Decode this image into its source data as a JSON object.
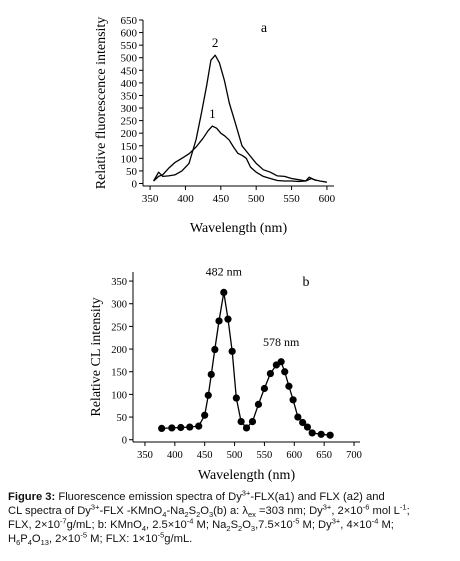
{
  "chart_data": [
    {
      "type": "line",
      "panel_label": "a",
      "xlabel": "Wavelength (nm)",
      "ylabel": "Relative fluorescence intensity",
      "xlim": [
        340,
        610
      ],
      "ylim": [
        -10,
        650
      ],
      "xticks": [
        350,
        400,
        450,
        500,
        550,
        600
      ],
      "yticks": [
        0,
        50,
        100,
        150,
        200,
        250,
        300,
        350,
        400,
        450,
        500,
        550,
        600,
        650
      ],
      "xtick_labels": [
        "350",
        "400",
        "450",
        "500",
        "550",
        "600"
      ],
      "ytick_labels": [
        "0",
        "50",
        "100",
        "150",
        "200",
        "250",
        "300",
        "350",
        "400",
        "450",
        "500",
        "550",
        "600",
        "650"
      ],
      "series": [
        {
          "name": "1",
          "x": [
            355,
            362,
            368,
            376,
            385,
            395,
            405,
            415,
            425,
            432,
            438,
            444,
            450,
            456,
            462,
            468,
            474,
            480,
            486,
            492,
            500,
            510,
            520,
            530,
            540,
            550,
            560,
            570,
            578,
            585
          ],
          "y": [
            10,
            28,
            35,
            60,
            83,
            100,
            118,
            145,
            180,
            210,
            228,
            220,
            200,
            188,
            172,
            145,
            120,
            112,
            100,
            65,
            45,
            28,
            20,
            12,
            10,
            10,
            8,
            10,
            20,
            12
          ]
        },
        {
          "name": "2",
          "x": [
            355,
            362,
            368,
            376,
            385,
            395,
            405,
            415,
            423,
            430,
            436,
            442,
            448,
            455,
            462,
            470,
            480,
            490,
            500,
            510,
            520,
            530,
            540,
            550,
            560,
            570,
            575,
            582,
            590,
            600
          ],
          "y": [
            10,
            45,
            28,
            30,
            34,
            50,
            80,
            175,
            285,
            390,
            490,
            510,
            480,
            410,
            320,
            245,
            150,
            115,
            80,
            55,
            45,
            30,
            28,
            20,
            15,
            10,
            25,
            15,
            10,
            5
          ]
        }
      ]
    },
    {
      "type": "line",
      "panel_label": "b",
      "xlabel": "Wavelength (nm)",
      "ylabel": "Relative CL intensity",
      "xlim": [
        330,
        710
      ],
      "ylim": [
        -5,
        370
      ],
      "xticks": [
        350,
        400,
        450,
        500,
        550,
        600,
        650,
        700
      ],
      "yticks": [
        0,
        50,
        100,
        150,
        200,
        250,
        300,
        350
      ],
      "xtick_labels": [
        "350",
        "400",
        "450",
        "500",
        "550",
        "600",
        "650",
        "700"
      ],
      "ytick_labels": [
        "0",
        "50",
        "100",
        "150",
        "200",
        "250",
        "300",
        "350"
      ],
      "annotations": [
        "482 nm",
        "578 nm"
      ],
      "series": [
        {
          "name": "",
          "x": [
            378,
            395,
            410,
            425,
            440,
            450,
            456,
            461,
            467,
            474,
            482,
            489,
            496,
            503,
            511,
            520,
            530,
            540,
            550,
            560,
            570,
            578,
            584,
            591,
            598,
            606,
            614,
            622,
            630,
            645,
            660
          ],
          "y": [
            25,
            26,
            27,
            28,
            30,
            54,
            98,
            144,
            199,
            262,
            325,
            266,
            195,
            92,
            40,
            26,
            40,
            78,
            113,
            146,
            165,
            172,
            150,
            118,
            88,
            50,
            38,
            28,
            15,
            12,
            10
          ]
        }
      ]
    }
  ],
  "caption": {
    "lines": [
      {
        "parts": [
          {
            "text": "Figure 3:",
            "style": "b"
          },
          {
            "text": " Fluorescence emission spectra of Dy"
          },
          {
            "text": "3+",
            "style": "sup"
          },
          {
            "text": "-FLX(a1) and FLX (a2) and"
          }
        ]
      },
      {
        "parts": [
          {
            "text": "CL spectra of Dy"
          },
          {
            "text": "3+",
            "style": "sup"
          },
          {
            "text": "-FLX -KMnO"
          },
          {
            "text": "4",
            "style": "sub"
          },
          {
            "text": "-Na"
          },
          {
            "text": "2",
            "style": "sub"
          },
          {
            "text": "S"
          },
          {
            "text": "2",
            "style": "sub"
          },
          {
            "text": "O"
          },
          {
            "text": "3",
            "style": "sub"
          },
          {
            "text": "(b) a: λ"
          },
          {
            "text": "ex",
            "style": "sub"
          },
          {
            "text": " =303 nm; Dy"
          },
          {
            "text": "3+",
            "style": "sup"
          },
          {
            "text": ", 2×10"
          },
          {
            "text": "-6",
            "style": "sup"
          },
          {
            "text": " mol L"
          },
          {
            "text": "-1",
            "style": "sup"
          },
          {
            "text": ";"
          }
        ]
      },
      {
        "parts": [
          {
            "text": "FLX, 2×10"
          },
          {
            "text": "-7",
            "style": "sup"
          },
          {
            "text": "g/mL; b: KMnO"
          },
          {
            "text": "4",
            "style": "sub"
          },
          {
            "text": ", 2.5×10"
          },
          {
            "text": "-4",
            "style": "sup"
          },
          {
            "text": " M; Na"
          },
          {
            "text": "2",
            "style": "sub"
          },
          {
            "text": "S"
          },
          {
            "text": "2",
            "style": "sub"
          },
          {
            "text": "O"
          },
          {
            "text": "3",
            "style": "sub"
          },
          {
            "text": ",7.5×10"
          },
          {
            "text": "-5",
            "style": "sup"
          },
          {
            "text": " M; Dy"
          },
          {
            "text": "3+",
            "style": "sup"
          },
          {
            "text": ", 4×10"
          },
          {
            "text": "-4",
            "style": "sup"
          },
          {
            "text": " M;"
          }
        ]
      },
      {
        "parts": [
          {
            "text": "H"
          },
          {
            "text": "6",
            "style": "sub"
          },
          {
            "text": "P"
          },
          {
            "text": "4",
            "style": "sub"
          },
          {
            "text": "O"
          },
          {
            "text": "13",
            "style": "sub"
          },
          {
            "text": ", 2×10"
          },
          {
            "text": "-5",
            "style": "sup"
          },
          {
            "text": " M; FLX: 1×10"
          },
          {
            "text": "-5",
            "style": "sup"
          },
          {
            "text": "g/mL."
          }
        ]
      }
    ]
  }
}
